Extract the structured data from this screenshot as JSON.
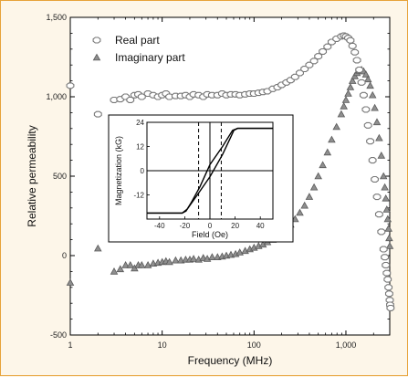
{
  "chart_data": [
    {
      "type": "scatter",
      "xlabel": "Frequency (MHz)",
      "ylabel": "Relative permeability",
      "xscale": "log",
      "xlim": [
        1,
        3000
      ],
      "ylim": [
        -500,
        1500
      ],
      "x_ticks": [
        1,
        10,
        100,
        1000
      ],
      "x_tick_labels": [
        "1",
        "10",
        "100",
        "1,000"
      ],
      "y_ticks": [
        -500,
        0,
        500,
        1000,
        1500
      ],
      "y_tick_labels": [
        "-500",
        "0",
        "500",
        "1,000",
        "1,500"
      ],
      "legend_position": "top-left",
      "series": [
        {
          "name": "Real part",
          "marker": "hexagon-open",
          "points": [
            [
              1,
              1070
            ],
            [
              2,
              890
            ],
            [
              3,
              980
            ],
            [
              3.5,
              985
            ],
            [
              4,
              1000
            ],
            [
              4.5,
              980
            ],
            [
              5,
              1010
            ],
            [
              5.5,
              1015
            ],
            [
              6,
              1000
            ],
            [
              7,
              1020
            ],
            [
              8,
              1010
            ],
            [
              9,
              1000
            ],
            [
              10,
              1010
            ],
            [
              11,
              1020
            ],
            [
              12,
              1000
            ],
            [
              14,
              1005
            ],
            [
              16,
              1005
            ],
            [
              18,
              1010
            ],
            [
              20,
              1000
            ],
            [
              22,
              1015
            ],
            [
              25,
              1010
            ],
            [
              28,
              1000
            ],
            [
              31,
              1015
            ],
            [
              35,
              1010
            ],
            [
              40,
              1010
            ],
            [
              45,
              1020
            ],
            [
              50,
              1010
            ],
            [
              56,
              1015
            ],
            [
              63,
              1015
            ],
            [
              70,
              1010
            ],
            [
              80,
              1015
            ],
            [
              90,
              1020
            ],
            [
              100,
              1020
            ],
            [
              112,
              1025
            ],
            [
              125,
              1030
            ],
            [
              140,
              1035
            ],
            [
              160,
              1050
            ],
            [
              180,
              1060
            ],
            [
              200,
              1075
            ],
            [
              225,
              1090
            ],
            [
              250,
              1105
            ],
            [
              280,
              1125
            ],
            [
              315,
              1150
            ],
            [
              355,
              1175
            ],
            [
              400,
              1200
            ],
            [
              450,
              1225
            ],
            [
              500,
              1255
            ],
            [
              560,
              1285
            ],
            [
              630,
              1315
            ],
            [
              700,
              1345
            ],
            [
              790,
              1365
            ],
            [
              890,
              1380
            ],
            [
              950,
              1385
            ],
            [
              1000,
              1380
            ],
            [
              1060,
              1370
            ],
            [
              1120,
              1355
            ],
            [
              1180,
              1320
            ],
            [
              1250,
              1280
            ],
            [
              1320,
              1230
            ],
            [
              1400,
              1170
            ],
            [
              1480,
              1090
            ],
            [
              1560,
              1010
            ],
            [
              1650,
              920
            ],
            [
              1740,
              820
            ],
            [
              1840,
              720
            ],
            [
              1950,
              600
            ],
            [
              2060,
              480
            ],
            [
              2180,
              370
            ],
            [
              2300,
              260
            ],
            [
              2430,
              150
            ],
            [
              2570,
              40
            ],
            [
              2650,
              -10
            ],
            [
              2720,
              -60
            ],
            [
              2790,
              -110
            ],
            [
              2850,
              -150
            ],
            [
              2910,
              -200
            ],
            [
              2960,
              -240
            ],
            [
              3000,
              -280
            ],
            [
              3030,
              -310
            ],
            [
              3060,
              -330
            ]
          ]
        },
        {
          "name": "Imaginary part",
          "marker": "triangle-filled",
          "points": [
            [
              1,
              -170
            ],
            [
              2,
              45
            ],
            [
              3,
              -100
            ],
            [
              3.5,
              -85
            ],
            [
              4,
              -60
            ],
            [
              4.5,
              -60
            ],
            [
              5,
              -80
            ],
            [
              5.5,
              -60
            ],
            [
              6,
              -60
            ],
            [
              7,
              -60
            ],
            [
              8,
              -50
            ],
            [
              9,
              -45
            ],
            [
              10,
              -40
            ],
            [
              11,
              -35
            ],
            [
              12,
              -40
            ],
            [
              14,
              -30
            ],
            [
              16,
              -30
            ],
            [
              18,
              -25
            ],
            [
              20,
              -25
            ],
            [
              22,
              -20
            ],
            [
              25,
              -25
            ],
            [
              28,
              -15
            ],
            [
              31,
              -20
            ],
            [
              35,
              -10
            ],
            [
              40,
              -10
            ],
            [
              45,
              -5
            ],
            [
              50,
              0
            ],
            [
              56,
              5
            ],
            [
              63,
              10
            ],
            [
              70,
              20
            ],
            [
              80,
              30
            ],
            [
              90,
              40
            ],
            [
              100,
              50
            ],
            [
              112,
              60
            ],
            [
              125,
              70
            ],
            [
              140,
              85
            ],
            [
              160,
              100
            ],
            [
              180,
              120
            ],
            [
              200,
              140
            ],
            [
              225,
              165
            ],
            [
              250,
              195
            ],
            [
              280,
              230
            ],
            [
              315,
              270
            ],
            [
              355,
              315
            ],
            [
              400,
              370
            ],
            [
              450,
              430
            ],
            [
              500,
              500
            ],
            [
              560,
              570
            ],
            [
              630,
              650
            ],
            [
              700,
              730
            ],
            [
              790,
              810
            ],
            [
              890,
              890
            ],
            [
              950,
              940
            ],
            [
              1000,
              980
            ],
            [
              1060,
              1020
            ],
            [
              1120,
              1060
            ],
            [
              1180,
              1100
            ],
            [
              1250,
              1130
            ],
            [
              1320,
              1150
            ],
            [
              1400,
              1165
            ],
            [
              1480,
              1170
            ],
            [
              1560,
              1160
            ],
            [
              1650,
              1140
            ],
            [
              1740,
              1110
            ],
            [
              1840,
              1070
            ],
            [
              1950,
              1010
            ],
            [
              2060,
              930
            ],
            [
              2180,
              840
            ],
            [
              2300,
              740
            ],
            [
              2430,
              630
            ],
            [
              2570,
              500
            ],
            [
              2650,
              430
            ],
            [
              2720,
              360
            ],
            [
              2790,
              290
            ],
            [
              2850,
              230
            ],
            [
              2910,
              170
            ],
            [
              2960,
              110
            ],
            [
              3000,
              60
            ]
          ]
        }
      ]
    },
    {
      "type": "line",
      "xlabel": "Field (Oe)",
      "ylabel": "Magnetization (kG)",
      "xlim": [
        -50,
        50
      ],
      "ylim": [
        -24,
        24
      ],
      "x_ticks": [
        -40,
        -20,
        0,
        20,
        40
      ],
      "x_tick_labels": [
        "-40",
        "-20",
        "0",
        "20",
        "40"
      ],
      "y_ticks": [
        -12,
        0,
        12,
        24
      ],
      "y_tick_labels": [
        "-12",
        "0",
        "12",
        "24"
      ],
      "reference_lines": {
        "dashed_x": [
          -9,
          9
        ],
        "solid_x": [
          0
        ],
        "solid_y": [
          0
        ]
      },
      "series": [
        {
          "points": [
            [
              -50,
              -21
            ],
            [
              -22,
              -21
            ],
            [
              -18,
              -19
            ],
            [
              -10,
              -12
            ],
            [
              0,
              -3
            ],
            [
              10,
              8
            ],
            [
              16,
              16
            ],
            [
              19,
              20
            ],
            [
              22,
              21
            ],
            [
              50,
              21
            ]
          ]
        },
        {
          "points": [
            [
              -50,
              -21
            ],
            [
              -22,
              -21
            ],
            [
              -19,
              -20
            ],
            [
              -15,
              -16
            ],
            [
              -8,
              -8
            ],
            [
              0,
              3
            ],
            [
              10,
              12
            ],
            [
              18,
              20
            ],
            [
              22,
              21
            ],
            [
              50,
              21
            ]
          ]
        }
      ]
    }
  ],
  "colors": {
    "background": "#fdf6e9",
    "border": "#e7a33b",
    "marker_real_fill": "#ffffff",
    "marker_real_stroke": "#777777",
    "marker_imag_fill": "#8f8f8f",
    "marker_imag_stroke": "#5a5a5a",
    "axis": "#000000"
  }
}
